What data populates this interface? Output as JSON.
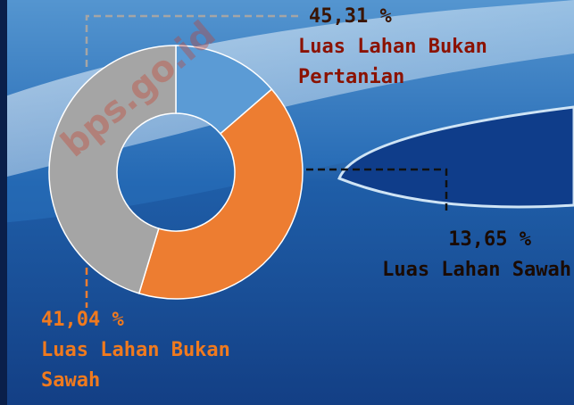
{
  "chart_data": {
    "type": "pie",
    "donut": true,
    "categories": [
      "Luas Lahan Sawah",
      "Luas Lahan Bukan Sawah",
      "Luas Lahan Bukan Pertanian"
    ],
    "values": [
      13.65,
      41.04,
      45.31
    ],
    "value_labels": [
      "13,65 %",
      "41,04 %",
      "45,31 %"
    ],
    "colors": [
      "#5b9bd5",
      "#ed7d31",
      "#a5a5a5"
    ]
  },
  "watermark": "bps.go.id"
}
